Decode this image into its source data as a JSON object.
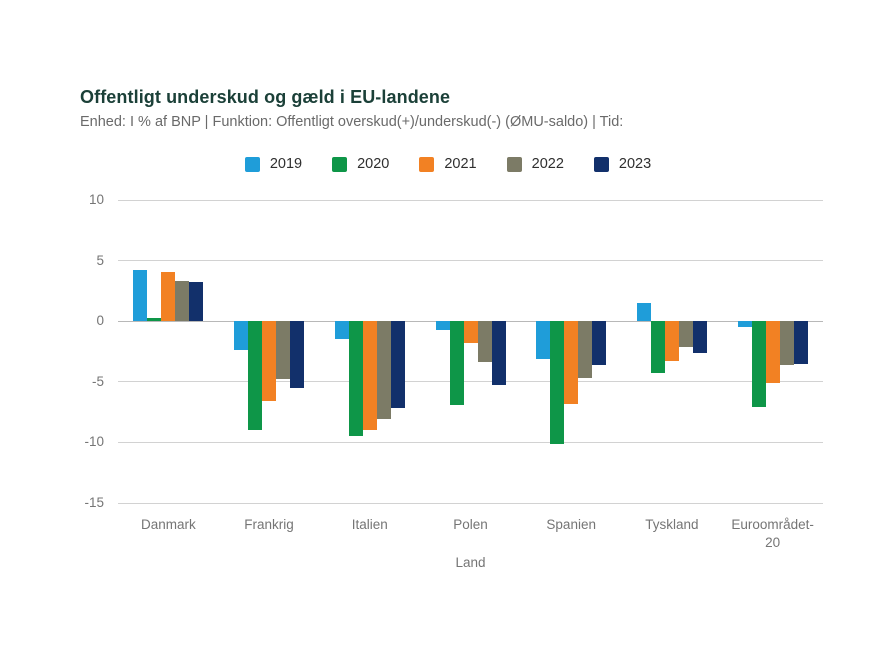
{
  "header": {
    "title": "Offentligt underskud og gæld i EU-landene",
    "subtitle": "Enhed: I % af BNP | Funktion: Offentligt overskud(+)/underskud(-) (ØMU-saldo) | Tid:"
  },
  "chart_data": {
    "type": "bar",
    "title": "Offentligt underskud og gæld i EU-landene",
    "unit": "I % af BNP",
    "categories": [
      "Danmark",
      "Frankrig",
      "Italien",
      "Polen",
      "Spanien",
      "Tyskland",
      "Euroområdet-20"
    ],
    "series": [
      {
        "name": "2019",
        "color": "#1f9dd9",
        "values": [
          4.2,
          -2.4,
          -1.5,
          -0.7,
          -3.1,
          1.5,
          -0.5
        ]
      },
      {
        "name": "2020",
        "color": "#0e9648",
        "values": [
          0.3,
          -9.0,
          -9.5,
          -6.9,
          -10.1,
          -4.3,
          -7.1
        ]
      },
      {
        "name": "2021",
        "color": "#f28123",
        "values": [
          4.1,
          -6.6,
          -9.0,
          -1.8,
          -6.8,
          -3.3,
          -5.1
        ]
      },
      {
        "name": "2022",
        "color": "#7c7b66",
        "values": [
          3.3,
          -4.8,
          -8.1,
          -3.4,
          -4.7,
          -2.1,
          -3.6
        ]
      },
      {
        "name": "2023",
        "color": "#12306b",
        "values": [
          3.2,
          -5.5,
          -7.2,
          -5.3,
          -3.6,
          -2.6,
          -3.5
        ]
      }
    ],
    "xlabel": "Land",
    "ylabel": "",
    "ylim": [
      -15,
      10
    ],
    "yticks": [
      10,
      5,
      0,
      -5,
      -10,
      -15
    ],
    "grid": true,
    "legend_position": "top"
  },
  "colors": {
    "title": "#1b4038",
    "subtitle": "#6a6a6a",
    "axis_label": "#757575",
    "gridline": "#d2d2d2",
    "zero_line": "#b8b8b8",
    "background": "#ffffff"
  }
}
